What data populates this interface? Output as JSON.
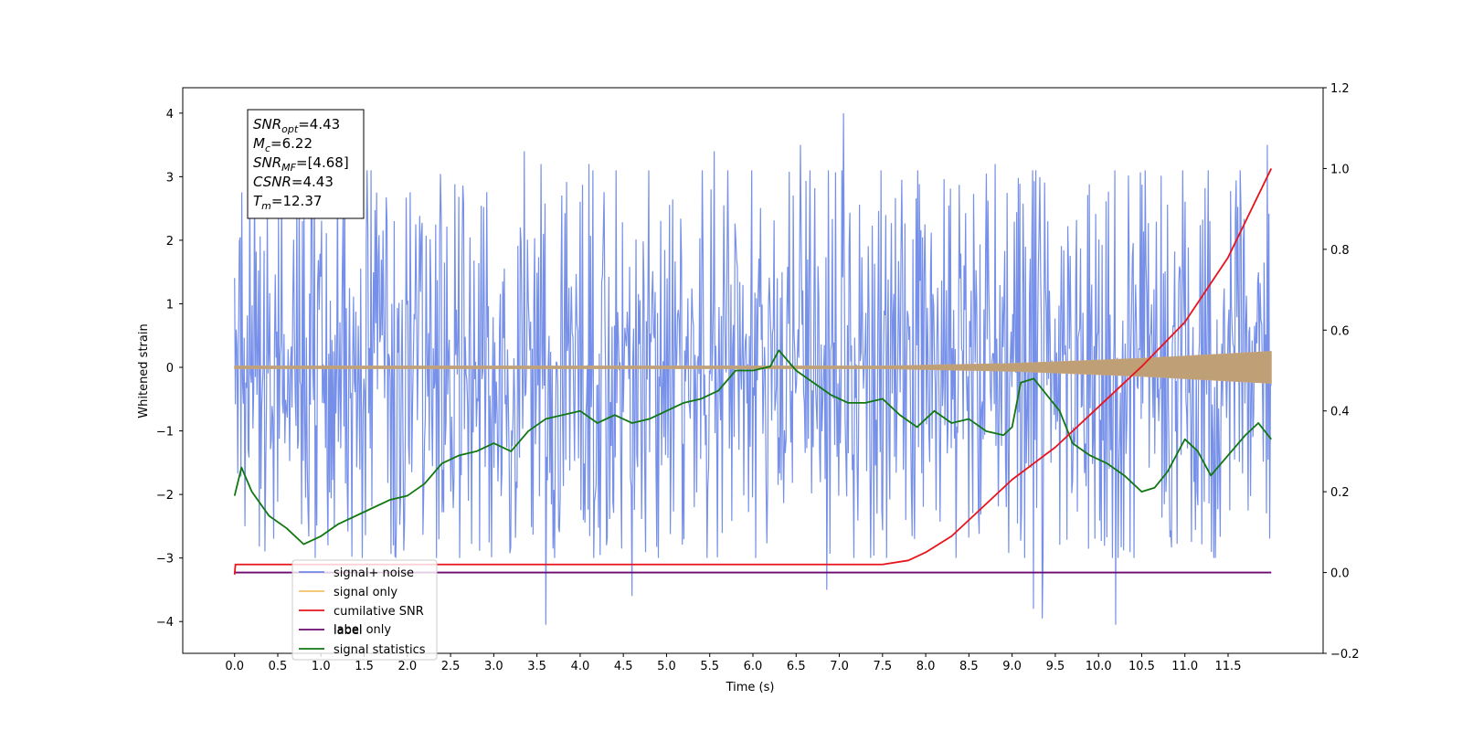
{
  "chart_data": {
    "type": "line",
    "xlabel": "Time (s)",
    "ylabel": "Whitened strain",
    "xlim": [
      -0.6,
      12.6
    ],
    "ylim": [
      -4.5,
      4.4
    ],
    "y2lim": [
      -0.2,
      1.2
    ],
    "x_ticks": [
      0.0,
      0.5,
      1.0,
      1.5,
      2.0,
      2.5,
      3.0,
      3.5,
      4.0,
      4.5,
      5.0,
      5.5,
      6.0,
      6.5,
      7.0,
      7.5,
      8.0,
      8.5,
      9.0,
      9.5,
      10.0,
      10.5,
      11.0,
      11.5
    ],
    "x_tick_labels": [
      "0.0",
      "0.5",
      "1.0",
      "1.5",
      "2.0",
      "2.5",
      "3.0",
      "3.5",
      "4.0",
      "4.5",
      "5.0",
      "5.5",
      "6.0",
      "6.5",
      "7.0",
      "7.5",
      "8.0",
      "8.5",
      "9.0",
      "9.5",
      "10.0",
      "10.5",
      "11.0",
      "11.5"
    ],
    "y_ticks": [
      4,
      3,
      2,
      1,
      0,
      -1,
      -2,
      -3,
      -4
    ],
    "y_tick_labels": [
      "4",
      "3",
      "2",
      "1",
      "0",
      "−1",
      "−2",
      "−3",
      "−4"
    ],
    "y2_ticks": [
      1.2,
      1.0,
      0.8,
      0.6,
      0.4,
      0.2,
      0.0,
      -0.2
    ],
    "y2_tick_labels": [
      "1.2",
      "1.0",
      "0.8",
      "0.6",
      "0.4",
      "0.2",
      "0.0",
      "−0.2"
    ],
    "series": [
      {
        "name": "signal+ noise",
        "axis": "left",
        "color": "#6f8ae8",
        "kind": "noise",
        "t_range": [
          0.0,
          12.0
        ],
        "baseline_band": [
          -1.6,
          1.6
        ],
        "typical_extremes": [
          -2.8,
          2.9
        ],
        "peaks": [
          [
            3.35,
            3.4
          ],
          [
            3.55,
            3.2
          ],
          [
            4.1,
            3.2
          ],
          [
            5.55,
            3.4
          ],
          [
            6.55,
            3.5
          ],
          [
            7.05,
            4.0
          ],
          [
            8.8,
            3.2
          ],
          [
            11.95,
            3.5
          ],
          [
            3.6,
            -4.05
          ],
          [
            4.6,
            -3.6
          ],
          [
            6.85,
            -3.5
          ],
          [
            9.25,
            -3.8
          ],
          [
            9.35,
            -3.95
          ],
          [
            10.2,
            -4.05
          ]
        ]
      },
      {
        "name": "signal only",
        "axis": "left",
        "color": "#f5c06a",
        "kind": "chirp",
        "t_range": [
          0.0,
          12.0
        ],
        "envelope": [
          [
            0.0,
            0.02
          ],
          [
            7.5,
            0.02
          ],
          [
            9.0,
            0.06
          ],
          [
            10.5,
            0.14
          ],
          [
            12.0,
            0.25
          ]
        ]
      },
      {
        "name": "cumilative SNR",
        "axis": "right",
        "color": "#e8141c",
        "x": [
          0.0,
          0.01,
          7.5,
          7.8,
          8.0,
          8.3,
          8.6,
          9.0,
          9.5,
          10.0,
          10.5,
          11.0,
          11.5,
          12.0
        ],
        "y": [
          -0.005,
          0.02,
          0.02,
          0.03,
          0.05,
          0.09,
          0.15,
          0.23,
          0.31,
          0.41,
          0.51,
          0.62,
          0.78,
          1.0
        ]
      },
      {
        "name": "label",
        "axis": "right",
        "color": "#6a0a6e",
        "x": [
          0.0,
          12.0
        ],
        "y": [
          0.0,
          0.0
        ]
      },
      {
        "name": "signal statistics",
        "axis": "right",
        "color": "#117711",
        "x": [
          0.0,
          0.08,
          0.2,
          0.4,
          0.6,
          0.8,
          1.0,
          1.2,
          1.5,
          1.8,
          2.0,
          2.2,
          2.4,
          2.6,
          2.8,
          3.0,
          3.2,
          3.4,
          3.6,
          3.8,
          4.0,
          4.2,
          4.4,
          4.6,
          4.8,
          5.0,
          5.2,
          5.4,
          5.6,
          5.8,
          6.0,
          6.2,
          6.3,
          6.5,
          6.7,
          6.9,
          7.1,
          7.3,
          7.5,
          7.7,
          7.9,
          8.1,
          8.3,
          8.5,
          8.7,
          8.9,
          9.0,
          9.1,
          9.25,
          9.4,
          9.55,
          9.7,
          9.9,
          10.1,
          10.3,
          10.5,
          10.65,
          10.8,
          11.0,
          11.15,
          11.3,
          11.5,
          11.7,
          11.85,
          12.0
        ],
        "y": [
          0.19,
          0.26,
          0.2,
          0.14,
          0.11,
          0.07,
          0.09,
          0.12,
          0.15,
          0.18,
          0.19,
          0.22,
          0.27,
          0.29,
          0.3,
          0.32,
          0.3,
          0.35,
          0.38,
          0.39,
          0.4,
          0.37,
          0.39,
          0.37,
          0.38,
          0.4,
          0.42,
          0.43,
          0.45,
          0.5,
          0.5,
          0.51,
          0.55,
          0.5,
          0.47,
          0.44,
          0.42,
          0.42,
          0.43,
          0.39,
          0.36,
          0.4,
          0.37,
          0.38,
          0.35,
          0.34,
          0.36,
          0.47,
          0.48,
          0.44,
          0.4,
          0.32,
          0.29,
          0.27,
          0.24,
          0.2,
          0.21,
          0.25,
          0.33,
          0.3,
          0.24,
          0.29,
          0.34,
          0.37,
          0.33
        ]
      }
    ],
    "legend": {
      "placement": "lower-left",
      "entries": [
        {
          "label": "signal+ noise",
          "color": "#6f8ae8"
        },
        {
          "label": "signal only",
          "color": "#f5c06a"
        },
        {
          "label": "cumilative SNR",
          "color": "#e8141c"
        },
        {
          "label": "label",
          "color": "#6a0a6e"
        },
        {
          "label": "signal statistics",
          "color": "#117711"
        }
      ]
    },
    "overlapped_text": "label only",
    "stats_box": [
      {
        "base": "SNR",
        "sub": "opt",
        "rest": "=4.43"
      },
      {
        "base": "M",
        "sub": "c",
        "rest": "=6.22"
      },
      {
        "base": "SNR",
        "sub": "MF",
        "rest": "=[4.68]"
      },
      {
        "base": "CSNR",
        "sub": "",
        "rest": "=4.43"
      },
      {
        "base": "T",
        "sub": "m",
        "rest": "=12.37"
      }
    ]
  }
}
